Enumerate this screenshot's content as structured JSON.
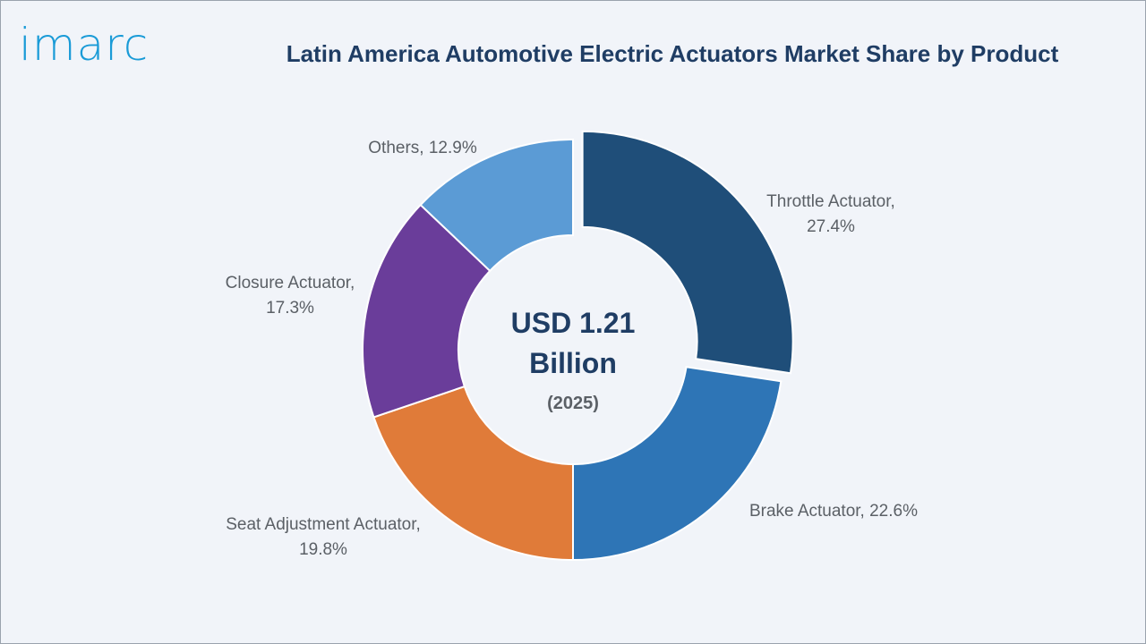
{
  "brand": {
    "logo_text": "imarc"
  },
  "colors": {
    "background": "#f1f4f9",
    "title": "#1f3d64",
    "logo": "#1a9bd7",
    "label": "#5b6066"
  },
  "chart_data": {
    "type": "pie",
    "variant": "donut",
    "title": "Latin America Automotive Electric Actuators Market Share by Product",
    "center_value": [
      "USD 1.21",
      "Billion"
    ],
    "center_year": "(2025)",
    "unit": "%",
    "exploded_slice": "Throttle Actuator",
    "slices": [
      {
        "label": "Throttle Actuator",
        "value": 27.4,
        "label_lines": [
          "Throttle Actuator,",
          "27.4%"
        ],
        "color": "#1f4e79"
      },
      {
        "label": "Brake Actuator",
        "value": 22.6,
        "label_lines": [
          "Brake Actuator, 22.6%"
        ],
        "color": "#2e75b6"
      },
      {
        "label": "Seat Adjustment Actuator",
        "value": 19.8,
        "label_lines": [
          "Seat Adjustment Actuator,",
          "19.8%"
        ],
        "color": "#e07b39"
      },
      {
        "label": "Closure Actuator",
        "value": 17.3,
        "label_lines": [
          "Closure Actuator,",
          "17.3%"
        ],
        "color": "#6a3d9a"
      },
      {
        "label": "Others",
        "value": 12.9,
        "label_lines": [
          "Others, 12.9%"
        ],
        "color": "#5b9bd5"
      }
    ]
  }
}
